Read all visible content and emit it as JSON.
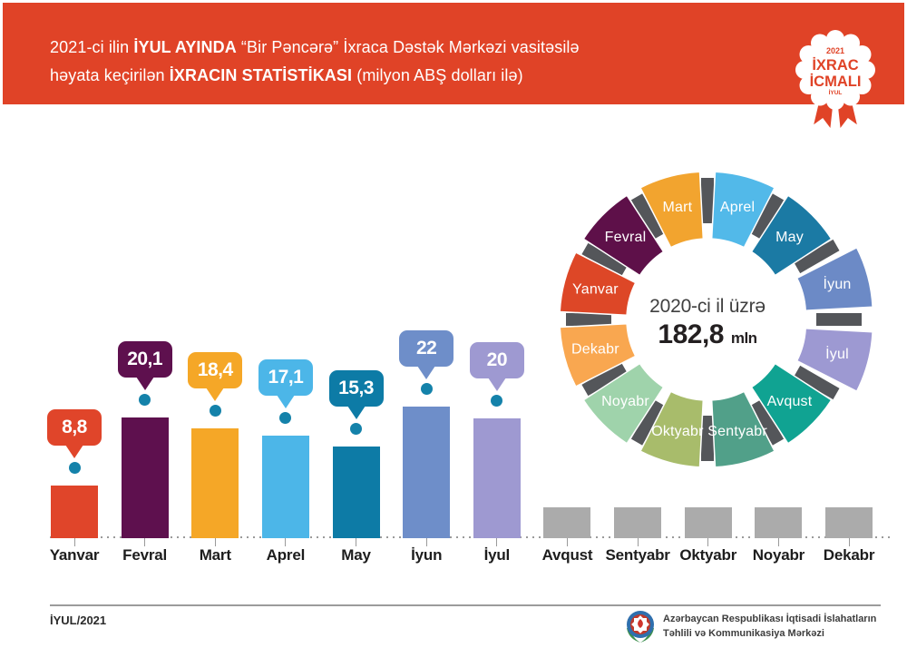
{
  "header": {
    "bg_color": "#e04327",
    "line1_pre": "2021-ci ilin ",
    "line1_bold": "İYUL AYINDA",
    "line1_post": " “Bir Pəncərə” İxraca Dəstək Mərkəzi vasitəsilə",
    "line2_pre": "həyata keçirilən ",
    "line2_bold": "İXRACIN STATİSTİKASI",
    "line2_post": " (milyon ABŞ dolları ilə)"
  },
  "badge": {
    "year": "2021",
    "title_line1": "İXRAC",
    "title_line2": "İCMALI",
    "month": "İYUL",
    "color": "#e04327"
  },
  "chart_data": [
    {
      "type": "bar",
      "categories": [
        "Yanvar",
        "Fevral",
        "Mart",
        "Aprel",
        "May",
        "İyun",
        "İyul",
        "Avqust",
        "Sentyabr",
        "Oktyabr",
        "Noyabr",
        "Dekabr"
      ],
      "values": [
        8.8,
        20.1,
        18.4,
        17.1,
        15.3,
        22,
        20,
        null,
        null,
        null,
        null,
        null
      ],
      "value_labels": [
        "8,8",
        "20,1",
        "18,4",
        "17,1",
        "15,3",
        "22",
        "20",
        "",
        "",
        "",
        "",
        ""
      ],
      "bar_colors": [
        "#e0452a",
        "#5e104e",
        "#f5a727",
        "#4cb6e8",
        "#0d7ba6",
        "#6e8ec9",
        "#9e99d1",
        "#ababab",
        "#ababab",
        "#ababab",
        "#ababab",
        "#ababab"
      ],
      "placeholder_color": "#ababab",
      "dot_color": "#1482aa",
      "unit": "milyon ABŞ dolları ilə",
      "xlabel": "",
      "ylabel": "",
      "grid": "off"
    },
    {
      "type": "pie",
      "subtype": "donut",
      "segments": [
        {
          "label": "Aprel",
          "color": "#52b9e9"
        },
        {
          "label": "May",
          "color": "#1b7aa4"
        },
        {
          "label": "İyun",
          "color": "#6c8ac6"
        },
        {
          "label": "İyul",
          "color": "#9d99d2"
        },
        {
          "label": "Avqust",
          "color": "#10a392"
        },
        {
          "label": "Sentyabr",
          "color": "#51a089"
        },
        {
          "label": "Oktyabr",
          "color": "#a8bc6b"
        },
        {
          "label": "Noyabr",
          "color": "#9fd3ab"
        },
        {
          "label": "Dekabr",
          "color": "#f9a750"
        },
        {
          "label": "Yanvar",
          "color": "#dd4727"
        },
        {
          "label": "Fevral",
          "color": "#5e1049"
        },
        {
          "label": "Mart",
          "color": "#f2a42f"
        }
      ],
      "exploded": [
        "İyun",
        "İyul"
      ],
      "separator_color": "#54565a",
      "center_line1": "2020-ci il üzrə",
      "center_value": "182,8",
      "center_unit": "mln",
      "legend_position": "on-slices"
    }
  ],
  "footer": {
    "left_text": "İYUL/2021",
    "org_line1": "Azərbaycan Respublikası İqtisadi İslahatların",
    "org_line2": "Təhlili və Kommunikasiya Mərkəzi"
  }
}
